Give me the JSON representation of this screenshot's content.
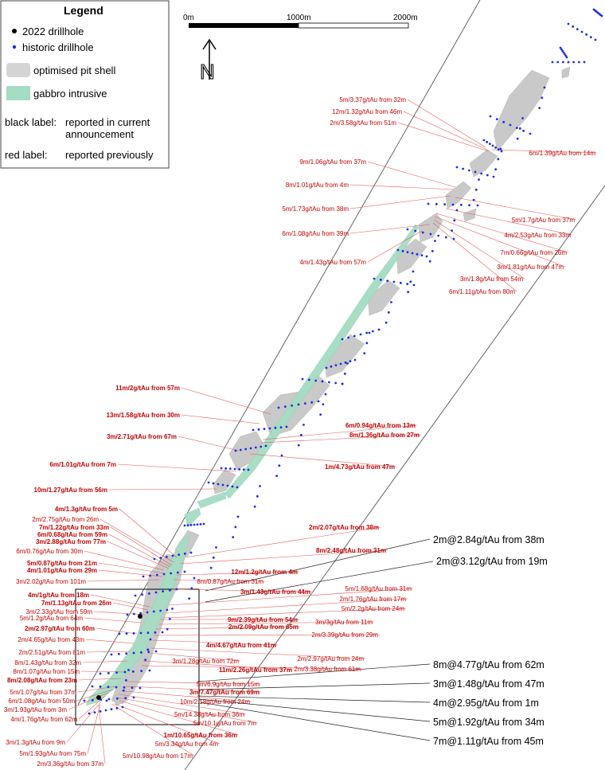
{
  "legend": {
    "title": "Legend",
    "items": [
      {
        "symbol": "black-dot",
        "label": "2022 drillhole",
        "color": "#000000"
      },
      {
        "symbol": "blue-dot",
        "label": "historic drillhole",
        "color": "#1c2fd6"
      },
      {
        "symbol": "grey-box",
        "label": "optimised pit shell",
        "color": "#d4d4d4"
      },
      {
        "symbol": "green-box",
        "label": "gabbro intrusive",
        "color": "#a6dcc4"
      }
    ],
    "black_label_key": "black label:",
    "black_label_desc_1": "reported in current",
    "black_label_desc_2": "announcement",
    "red_label_key": "red label:",
    "red_label_desc": "reported previously"
  },
  "scale_bar": {
    "labels": [
      "0m",
      "1000m",
      "2000m"
    ]
  },
  "north_arrow": {
    "letter": "N"
  },
  "colors": {
    "red_label": "#c00000",
    "black_label": "#000000",
    "pit": "#c9c9c9",
    "gabbro": "#a6dcc4",
    "historic_hole": "#1c2fd6",
    "new_hole": "#000000"
  },
  "labels_red": [
    {
      "text": "5m/3.37g/tAu from 32m",
      "bold": false
    },
    {
      "text": "12m/1.32g/tAu from 46m",
      "bold": false
    },
    {
      "text": "2m/3.58g/tAu from 51m",
      "bold": false
    },
    {
      "text": "6m/1.39g/tAu from 14m",
      "bold": false
    },
    {
      "text": "9m/1.06g/tAu from 37m",
      "bold": false
    },
    {
      "text": "8m/1.01g/tAu from 4m",
      "bold": false
    },
    {
      "text": "5m/1.73g/tAu from 38m",
      "bold": false
    },
    {
      "text": "6m/1.08g/tAu from 39m",
      "bold": false
    },
    {
      "text": "4m/1.43g/tAu from 57m",
      "bold": false
    },
    {
      "text": "5m/1.7g/tAu from 37m",
      "bold": false
    },
    {
      "text": "4m/2.53g/tAu from 33m",
      "bold": false
    },
    {
      "text": "7m/0.66g/tAu from 26m",
      "bold": false
    },
    {
      "text": "3m/1.81g/tAu from 47m",
      "bold": false
    },
    {
      "text": "3m/1.8g/tAu from 54m",
      "bold": false
    },
    {
      "text": "6m/1.11g/tAu from 80m",
      "bold": false
    },
    {
      "text": "11m/2g/tAu from 57m",
      "bold": true
    },
    {
      "text": "13m/1.58g/tAu from 30m",
      "bold": true
    },
    {
      "text": "3m/2.71g/tAu from 67m",
      "bold": true
    },
    {
      "text": "6m/0.94g/tAu from 13m",
      "bold": true
    },
    {
      "text": "8m/1.36g/tAu from 27m",
      "bold": true
    },
    {
      "text": "6m/1.01g/tAu from 7m",
      "bold": true
    },
    {
      "text": "1m/4.73g/tAu from 47m",
      "bold": true
    },
    {
      "text": "10m/1.27g/tAu from 56m",
      "bold": true
    },
    {
      "text": "4m/1.3g/tAu from 5m",
      "bold": true
    },
    {
      "text": "2m/2.75g/tAu from 26m",
      "bold": false
    },
    {
      "text": "7m/1.22g/tAu from 33m",
      "bold": true
    },
    {
      "text": "6m/0.68g/tAu from 59m",
      "bold": true
    },
    {
      "text": "3m/2.88g/tAu from 77m",
      "bold": true
    },
    {
      "text": "6m/0.76g/tAu from 30m",
      "bold": false
    },
    {
      "text": "2m/2.07g/tAu from 38m",
      "bold": true
    },
    {
      "text": "8m/2.48g/tAu from 31m",
      "bold": true
    },
    {
      "text": "5m/0.87g/tAu from 21m",
      "bold": true
    },
    {
      "text": "4m/1.01g/tAu from 29m",
      "bold": true
    },
    {
      "text": "12m/1.2g/tAu from 4m",
      "bold": true
    },
    {
      "text": "3m/2.02g/tAu from 101m",
      "bold": false
    },
    {
      "text": "8m/0.87g/tAu from 31m",
      "bold": false
    },
    {
      "text": "3m/1.43g/tAu from 44m",
      "bold": true
    },
    {
      "text": "4m/1g/tAu from 18m",
      "bold": true
    },
    {
      "text": "7m/1.13g/tAu from 26m",
      "bold": true
    },
    {
      "text": "5m/1.68g/tAu from 31m",
      "bold": false
    },
    {
      "text": "2m/1.76g/tAu from 17m",
      "bold": false
    },
    {
      "text": "3m/2.33g/tAu from 59m",
      "bold": false
    },
    {
      "text": "5m/2.2g/tAu from 24m",
      "bold": false
    },
    {
      "text": "5m/1.2g/tAu from 64m",
      "bold": false
    },
    {
      "text": "9m/2.39g/tAu from 54m",
      "bold": true
    },
    {
      "text": "3m/3g/tAu from 11m",
      "bold": false
    },
    {
      "text": "2m/2.09g/tAu from 65m",
      "bold": true
    },
    {
      "text": "2m/2.97g/tAu from 60m",
      "bold": true
    },
    {
      "text": "2m/3.39g/tAu from 29m",
      "bold": false
    },
    {
      "text": "2m/4.65g/tAu from 43m",
      "bold": false
    },
    {
      "text": "4m/4.67g/tAu from 41m",
      "bold": true
    },
    {
      "text": "2m/2.51g/tAu from 81m",
      "bold": false
    },
    {
      "text": "2m/2.97g/tAu from 24m",
      "bold": false
    },
    {
      "text": "3m/1.28g/tAu from 72m",
      "bold": false
    },
    {
      "text": "8m/1.43g/tAu from 32m",
      "bold": false
    },
    {
      "text": "11m/2.26g/tAu from 37m",
      "bold": true
    },
    {
      "text": "2m/3.38g/tAu from 61m",
      "bold": false
    },
    {
      "text": "8m/1.07g/tAu from 15m",
      "bold": false
    },
    {
      "text": "8m/2.08g/tAu from 23m",
      "bold": true
    },
    {
      "text": "5m/6.9g/tAu from 15m",
      "bold": false
    },
    {
      "text": "5m/1.07g/tAu from 37m",
      "bold": false
    },
    {
      "text": "3m/7.47g/tAu from 69m",
      "bold": true
    },
    {
      "text": "6m/1.08g/tAu from 50m",
      "bold": false
    },
    {
      "text": "10m/2.18g/tAu from 24m",
      "bold": false
    },
    {
      "text": "3m/1.93g/tAu from 3m",
      "bold": false
    },
    {
      "text": "5m/14.38g/tAu from 36m",
      "bold": false
    },
    {
      "text": "4m/1.76g/tAu from 62m",
      "bold": false
    },
    {
      "text": "5m/10.1g/tAu from 7m",
      "bold": false
    },
    {
      "text": "1m/10.65g/tAu from 36m",
      "bold": true
    },
    {
      "text": "3m/1.3g/tAu from 9m",
      "bold": false
    },
    {
      "text": "5m/3.34g/tAu from 4m",
      "bold": false
    },
    {
      "text": "5m/1.93g/tAu from 75m",
      "bold": false
    },
    {
      "text": "5m/10.98g/tAu from 17m",
      "bold": false
    },
    {
      "text": "2m/3.36g/tAu from 37m",
      "bold": false
    }
  ],
  "labels_black": [
    "2m@2.84g/tAu from 38m",
    "2m@3.12g/tAu from 19m",
    "8m@4.77g/tAu from 62m",
    "3m@1.48g/tAu from 47m",
    "4m@2.95g/tAu from 1m",
    "5m@1.92g/tAu from 34m",
    "7m@1.11g/tAu from 45m"
  ]
}
